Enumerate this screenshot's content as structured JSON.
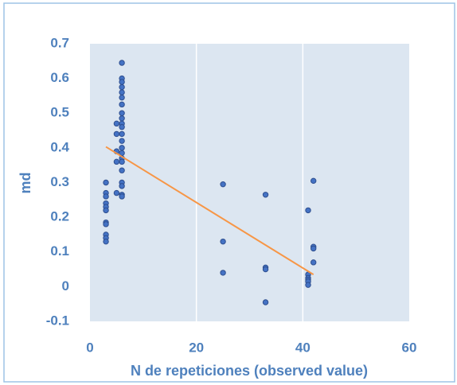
{
  "chart_data": {
    "type": "scatter",
    "x_label": "N de repeticiones (observed value)",
    "y_label": "md",
    "x": [
      3,
      3,
      3,
      3,
      3,
      3,
      3,
      3,
      3,
      3,
      3,
      5,
      5,
      5,
      5,
      5,
      6,
      6,
      6,
      6,
      6,
      6,
      6,
      6,
      6,
      6,
      6,
      6,
      6,
      6,
      6,
      6,
      6,
      6,
      6,
      6,
      6,
      6,
      25,
      25,
      25,
      33,
      33,
      33,
      33,
      41,
      41,
      41,
      41,
      41,
      41,
      42,
      42,
      42,
      42
    ],
    "values": [
      0.3,
      0.27,
      0.26,
      0.24,
      0.23,
      0.22,
      0.185,
      0.18,
      0.15,
      0.14,
      0.13,
      0.47,
      0.44,
      0.39,
      0.36,
      0.27,
      0.645,
      0.6,
      0.59,
      0.575,
      0.56,
      0.545,
      0.525,
      0.5,
      0.485,
      0.47,
      0.46,
      0.44,
      0.42,
      0.4,
      0.385,
      0.37,
      0.36,
      0.335,
      0.3,
      0.29,
      0.265,
      0.26,
      0.295,
      0.13,
      0.04,
      0.265,
      0.055,
      0.05,
      -0.045,
      0.22,
      0.035,
      0.025,
      0.02,
      0.015,
      0.005,
      0.305,
      0.115,
      0.11,
      0.07
    ],
    "color": "#4472c4",
    "trendline": {
      "x": [
        3,
        42
      ],
      "y": [
        0.403,
        0.035
      ],
      "color": "#f79646"
    },
    "xlim": [
      0,
      60
    ],
    "xticks": [
      0,
      20,
      40,
      60
    ],
    "ylim": [
      -0.1,
      0.7
    ],
    "yticks": [
      -0.1,
      0,
      0.1,
      0.2,
      0.3,
      0.4,
      0.5,
      0.6,
      0.7
    ],
    "grid": "x"
  }
}
